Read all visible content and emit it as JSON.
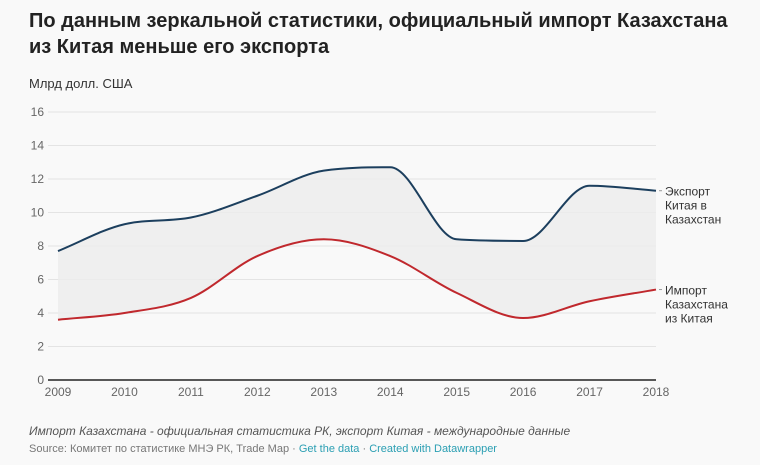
{
  "title": "По данным зеркальной статистики, официальный импорт Казахстана из Китая меньше его экспорта",
  "unit": "Млрд долл. США",
  "note": "Импорт Казахстана - официальная статистика РК, экспорт Китая - международные данные",
  "source": {
    "prefix": "Source: Комитет по статистике МНЭ РК, Trade Map",
    "sep": " · ",
    "get_data": "Get the data",
    "created": "Created with Datawrapper"
  },
  "chart_data": {
    "type": "line",
    "x": [
      2009,
      2010,
      2011,
      2012,
      2013,
      2014,
      2015,
      2016,
      2017,
      2018
    ],
    "xlim": [
      2009,
      2018
    ],
    "ylim": [
      0,
      16
    ],
    "yticks": [
      0,
      2,
      4,
      6,
      8,
      10,
      12,
      14,
      16
    ],
    "grid": true,
    "area_between_series": true,
    "series": [
      {
        "name": "Экспорт Китая в Казахстан",
        "label_lines": [
          "Экспорт",
          "Китая в",
          "Казахстан"
        ],
        "color": "#1c3f5e",
        "values": [
          7.7,
          9.3,
          9.7,
          11.0,
          12.5,
          12.7,
          8.4,
          8.3,
          11.6,
          11.3
        ]
      },
      {
        "name": "Импорт Казахстана из Китая",
        "label_lines": [
          "Импорт",
          "Казахстана",
          "из Китая"
        ],
        "color": "#c0282d",
        "values": [
          3.6,
          4.0,
          4.9,
          7.4,
          8.4,
          7.4,
          5.2,
          3.7,
          4.7,
          5.4
        ]
      }
    ]
  }
}
